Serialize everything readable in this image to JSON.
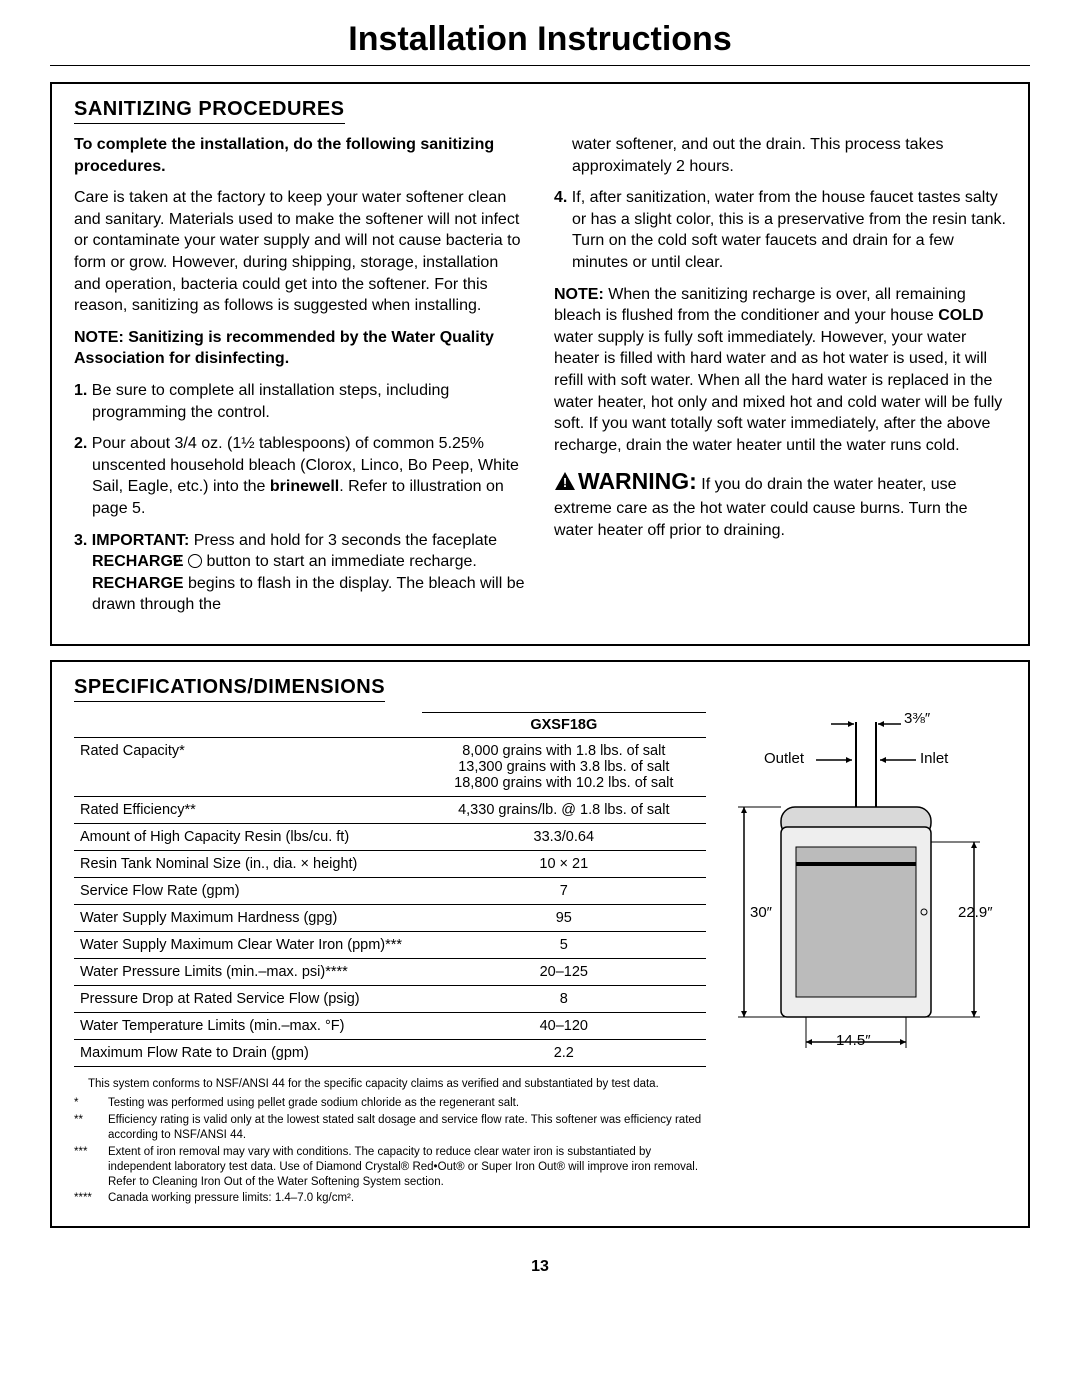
{
  "page": {
    "title": "Installation Instructions",
    "number": "13"
  },
  "sanitizing": {
    "heading": "SANITIZING PROCEDURES",
    "intro_bold": "To complete the installation, do the following sanitizing procedures.",
    "intro_para": "Care is taken at the factory to keep your water softener clean and sanitary. Materials used to make the softener will not infect or contaminate your water supply and will not cause bacteria to form or grow. However, during shipping, storage, installation and operation, bacteria could get into the softener. For this reason, sanitizing as follows is suggested when installing.",
    "note_bold": "NOTE: Sanitizing is recommended by the Water Quality Association for disinfecting.",
    "steps": [
      {
        "num": "1.",
        "html": "Be sure to complete all installation steps, including programming the control."
      },
      {
        "num": "2.",
        "html": "Pour about 3/4 oz. (1½ tablespoons) of common 5.25% unscented household bleach (Clorox, Linco, Bo Peep, White Sail, Eagle, etc.) into the <b>brinewell</b>. Refer to illustration on page 5."
      },
      {
        "num": "3.",
        "html": "<b>IMPORTANT:</b> Press and hold for 3 seconds the faceplate <b>RECHARGE</b> <span class=\"recharge-icon\" data-name=\"recharge-icon\" data-interactable=\"false\"></span> button to start an immediate recharge. <b>RECHARGE</b> begins to flash in the display. The bleach will be drawn through the"
      }
    ],
    "right_continuation": "water softener, and out the drain. This process takes approximately 2 hours.",
    "step4": {
      "num": "4.",
      "html": "If, after sanitization, water from the house faucet tastes salty or has a slight color, this is a preservative from the resin tank. Turn on the cold soft water faucets and drain for a few minutes or until clear."
    },
    "note2_html": "<b>NOTE:</b> When the sanitizing recharge is over, all remaining bleach is flushed from the conditioner and your house <b>COLD</b> water supply is fully soft immediately. However, your water heater is filled with hard water and as hot water is used, it will refill with soft water. When all the hard water is replaced in the water heater, hot only and mixed hot and cold water will be fully soft. If you want totally soft water immediately, after the above recharge, drain the water heater until the water runs cold.",
    "warning_label": "WARNING:",
    "warning_body": " If you do drain the water heater, use extreme care as the hot water could cause burns. Turn the water heater off prior to draining."
  },
  "specs": {
    "heading": "SPECIFICATIONS/DIMENSIONS",
    "model_header": "GXSF18G",
    "rows": [
      {
        "label": "Rated Capacity*",
        "value": "8,000 grains with 1.8 lbs. of salt\n13,300 grains with 3.8 lbs. of salt\n18,800 grains with 10.2 lbs. of salt"
      },
      {
        "label": "Rated Efficiency**",
        "value": "4,330 grains/lb. @ 1.8 lbs. of salt"
      },
      {
        "label": "Amount of High Capacity Resin (lbs/cu. ft)",
        "value": "33.3/0.64"
      },
      {
        "label": "Resin Tank Nominal Size (in., dia. × height)",
        "value": "10 × 21"
      },
      {
        "label": "Service Flow Rate (gpm)",
        "value": "7"
      },
      {
        "label": "Water Supply Maximum Hardness (gpg)",
        "value": "95"
      },
      {
        "label": "Water Supply Maximum Clear Water Iron (ppm)***",
        "value": "5"
      },
      {
        "label": "Water Pressure Limits (min.–max. psi)****",
        "value": "20–125"
      },
      {
        "label": "Pressure Drop at Rated Service Flow (psig)",
        "value": "8"
      },
      {
        "label": "Water Temperature Limits (min.–max. °F)",
        "value": "40–120"
      },
      {
        "label": "Maximum Flow Rate to Drain (gpm)",
        "value": "2.2"
      }
    ],
    "footnotes_pre": "This system conforms to NSF/ANSI 44 for the specific capacity claims as verified and substantiated by test data.",
    "footnotes": [
      {
        "mark": "*",
        "text": "Testing was performed using pellet grade sodium chloride as the regenerant salt."
      },
      {
        "mark": "**",
        "text": "Efficiency rating is valid only at the lowest stated salt dosage and service flow rate. This softener was efficiency rated according to NSF/ANSI 44."
      },
      {
        "mark": "***",
        "text": "Extent of iron removal may vary with conditions. The capacity to reduce clear water iron is substantiated by independent laboratory test data. Use of Diamond Crystal® Red•Out® or Super Iron Out® will improve iron removal. Refer to Cleaning Iron Out of the Water Softening System section."
      },
      {
        "mark": "****",
        "text": "Canada working pressure limits: 1.4–7.0 kg/cm²."
      }
    ]
  },
  "dimensions": {
    "top_gap": "3⅜″",
    "outlet": "Outlet",
    "inlet": "Inlet",
    "height_left": "30″",
    "height_right": "22.9″",
    "width": "14.5″"
  }
}
